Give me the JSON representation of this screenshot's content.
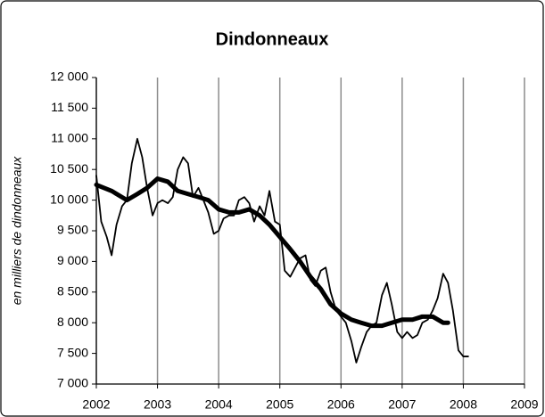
{
  "chart_data": {
    "type": "line",
    "title": "Dindonneaux",
    "y_label": "en milliers de dindonneaux",
    "xlim": [
      2002,
      2009
    ],
    "xticks": [
      2002,
      2003,
      2004,
      2005,
      2006,
      2007,
      2008,
      2009
    ],
    "ylim": [
      7000,
      12000
    ],
    "yticks": [
      {
        "value": 7000,
        "label": "7 000"
      },
      {
        "value": 7500,
        "label": "7 500"
      },
      {
        "value": 8000,
        "label": "8 000"
      },
      {
        "value": 8500,
        "label": "8 500"
      },
      {
        "value": 9000,
        "label": "9 000"
      },
      {
        "value": 9500,
        "label": "9 500"
      },
      {
        "value": 10000,
        "label": "10 000"
      },
      {
        "value": 10500,
        "label": "10 500"
      },
      {
        "value": 11000,
        "label": "11 000"
      },
      {
        "value": 11500,
        "label": "11 500"
      },
      {
        "value": 12000,
        "label": "12 000"
      }
    ],
    "grid": "x",
    "series": [
      {
        "color": "#000000",
        "x": [
          2002,
          2002.08,
          2002.17,
          2002.25,
          2002.33,
          2002.42,
          2002.5,
          2002.58,
          2002.67,
          2002.75,
          2002.83,
          2002.92,
          2003,
          2003.08,
          2003.17,
          2003.25,
          2003.33,
          2003.42,
          2003.5,
          2003.58,
          2003.67,
          2003.75,
          2003.83,
          2003.92,
          2004,
          2004.08,
          2004.17,
          2004.25,
          2004.33,
          2004.42,
          2004.5,
          2004.58,
          2004.67,
          2004.75,
          2004.83,
          2004.92,
          2005,
          2005.08,
          2005.17,
          2005.25,
          2005.33,
          2005.42,
          2005.5,
          2005.58,
          2005.67,
          2005.75,
          2005.83,
          2005.92,
          2006,
          2006.08,
          2006.17,
          2006.25,
          2006.33,
          2006.42,
          2006.5,
          2006.58,
          2006.67,
          2006.75,
          2006.83,
          2006.92,
          2007,
          2007.08,
          2007.17,
          2007.25,
          2007.33,
          2007.42,
          2007.5,
          2007.58,
          2007.67,
          2007.75,
          2007.83,
          2007.92,
          2008,
          2008.08
        ],
        "values": [
          10400,
          9650,
          9400,
          9100,
          9600,
          9900,
          10000,
          10600,
          11000,
          10700,
          10200,
          9750,
          9950,
          10000,
          9950,
          10050,
          10500,
          10700,
          10600,
          10050,
          10200,
          10000,
          9800,
          9450,
          9500,
          9700,
          9750,
          9750,
          10000,
          10050,
          9950,
          9650,
          9900,
          9750,
          10150,
          9650,
          9600,
          8850,
          8750,
          8900,
          9050,
          9100,
          8700,
          8600,
          8850,
          8900,
          8500,
          8200,
          8100,
          8000,
          7700,
          7350,
          7600,
          7850,
          7950,
          8000,
          8450,
          8650,
          8300,
          7850,
          7750,
          7850,
          7750,
          7800,
          8000,
          8050,
          8200,
          8400,
          8800,
          8650,
          8200,
          7550,
          7450,
          7450
        ]
      },
      {
        "color": "#000000",
        "x": [
          2002,
          2002.25,
          2002.5,
          2002.67,
          2002.83,
          2003,
          2003.17,
          2003.33,
          2003.5,
          2003.67,
          2003.83,
          2004,
          2004.17,
          2004.33,
          2004.5,
          2004.67,
          2004.83,
          2005,
          2005.17,
          2005.33,
          2005.5,
          2005.67,
          2005.83,
          2006,
          2006.17,
          2006.33,
          2006.5,
          2006.67,
          2006.83,
          2007,
          2007.17,
          2007.33,
          2007.5,
          2007.67,
          2007.75
        ],
        "values": [
          10250,
          10150,
          10000,
          10100,
          10200,
          10350,
          10300,
          10150,
          10100,
          10050,
          10000,
          9850,
          9800,
          9800,
          9850,
          9750,
          9600,
          9400,
          9200,
          9000,
          8750,
          8550,
          8300,
          8150,
          8050,
          8000,
          7950,
          7950,
          8000,
          8050,
          8050,
          8100,
          8100,
          8000,
          8000
        ]
      }
    ]
  }
}
